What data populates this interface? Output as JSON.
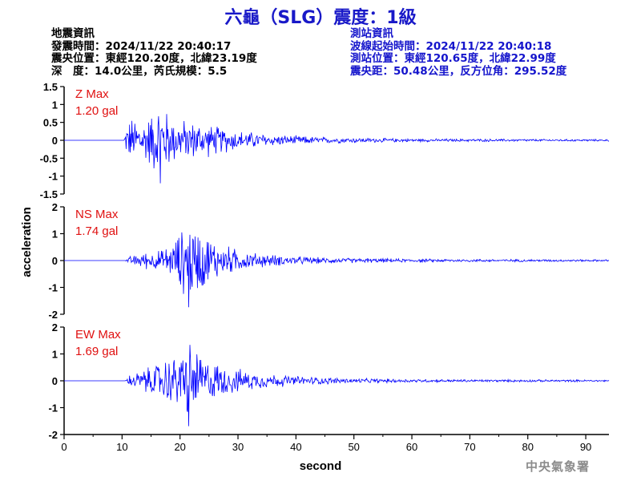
{
  "title": "六龜（SLG）震度：1級",
  "event_info": {
    "heading": "地震資訊",
    "origin_time": "發震時間：2024/11/22 20:40:17",
    "epicenter": "震央位置：東經120.20度，北緯23.19度",
    "depth_magnitude": "深　度：14.0公里，芮氏規模：5.5"
  },
  "station_info": {
    "heading": "測站資訊",
    "wave_start": "波線起始時間：2024/11/22 20:40:18",
    "location": "測站位置：東經120.65度，北緯22.99度",
    "distance": "震央距：50.48公里，反方位角：295.52度"
  },
  "credit": "中央氣象署",
  "colors": {
    "trace": "#0000ff",
    "label": "#e01010",
    "title": "#1919c8",
    "station": "#1414cc",
    "axis": "#000000"
  },
  "chart_data": {
    "type": "line",
    "xlabel": "second",
    "ylabel": "acceleration",
    "xlim": [
      0,
      94
    ],
    "xticks": [
      0,
      10,
      20,
      30,
      40,
      50,
      60,
      70,
      80,
      90
    ],
    "sample_step": 0.1,
    "panels": [
      {
        "name": "Z",
        "label": "Z Max",
        "max_text": "1.20 gal",
        "max": 1.2,
        "ylim": [
          -1.5,
          1.5
        ],
        "yticks": [
          -1.5,
          -1,
          -0.5,
          0,
          0.5,
          1,
          1.5
        ],
        "ytick_labels": [
          "-1.5",
          "-1",
          "-0.5",
          "0",
          "0.5",
          "1",
          "1.5"
        ],
        "envelope": [
          [
            0,
            0
          ],
          [
            10.3,
            0
          ],
          [
            10.9,
            0.6
          ],
          [
            12,
            0.75
          ],
          [
            14,
            0.7
          ],
          [
            16.6,
            1.2
          ],
          [
            19,
            0.7
          ],
          [
            24,
            0.55
          ],
          [
            30,
            0.32
          ],
          [
            36,
            0.18
          ],
          [
            45,
            0.1
          ],
          [
            60,
            0.05
          ],
          [
            94,
            0.03
          ]
        ]
      },
      {
        "name": "NS",
        "label": "NS Max",
        "max_text": "1.74 gal",
        "max": 1.74,
        "ylim": [
          -2,
          2
        ],
        "yticks": [
          -2,
          -1,
          0,
          1,
          2
        ],
        "ytick_labels": [
          "-2",
          "-1",
          "0",
          "1",
          "2"
        ],
        "envelope": [
          [
            0,
            0
          ],
          [
            10.5,
            0
          ],
          [
            11.5,
            0.2
          ],
          [
            14,
            0.35
          ],
          [
            17,
            0.45
          ],
          [
            19,
            0.85
          ],
          [
            21.5,
            1.74
          ],
          [
            24,
            1.2
          ],
          [
            27,
            0.7
          ],
          [
            32,
            0.35
          ],
          [
            38,
            0.2
          ],
          [
            45,
            0.12
          ],
          [
            60,
            0.07
          ],
          [
            94,
            0.04
          ]
        ]
      },
      {
        "name": "EW",
        "label": "EW Max",
        "max_text": "1.69 gal",
        "max": 1.69,
        "ylim": [
          -2,
          2
        ],
        "yticks": [
          -2,
          -1,
          0,
          1,
          2
        ],
        "ytick_labels": [
          "-2",
          "-1",
          "0",
          "1",
          "2"
        ],
        "envelope": [
          [
            0,
            0
          ],
          [
            10.5,
            0
          ],
          [
            11.5,
            0.3
          ],
          [
            14,
            0.5
          ],
          [
            17,
            0.9
          ],
          [
            19.5,
            1.1
          ],
          [
            21.5,
            1.69
          ],
          [
            24,
            1.0
          ],
          [
            28,
            0.6
          ],
          [
            33,
            0.35
          ],
          [
            40,
            0.2
          ],
          [
            50,
            0.1
          ],
          [
            65,
            0.06
          ],
          [
            94,
            0.04
          ]
        ]
      }
    ]
  }
}
